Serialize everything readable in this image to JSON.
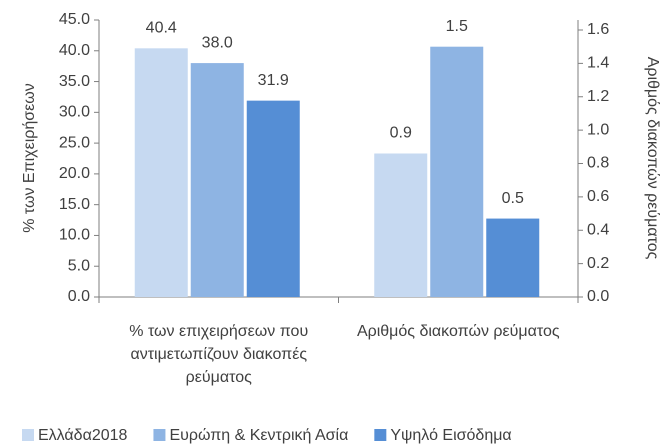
{
  "chart_data": {
    "type": "bar",
    "categories": [
      "% των επιχειρήσεων που αντιμετωπίζουν διακοπές ρεύματος",
      "Αριθμός διακοπών ρεύματος"
    ],
    "category_axes": [
      "y",
      "y2"
    ],
    "series": [
      {
        "name": "Ελλάδα2018",
        "color": "#c6d9f1",
        "values": [
          40.4,
          0.86
        ],
        "value_labels": [
          "40.4",
          "0.9"
        ]
      },
      {
        "name": "Ευρώπη & Κεντρική Ασία",
        "color": "#8eb4e3",
        "values": [
          38,
          1.5
        ],
        "value_labels": [
          "38.0",
          "1.5"
        ]
      },
      {
        "name": "Υψηλό Εισόδημα",
        "color": "#558ed5",
        "values": [
          31.9,
          0.47
        ],
        "value_labels": [
          "31.9",
          "0.5"
        ]
      }
    ],
    "ylabel": "% των Επιχειρήσεων",
    "y2label": "Αριθμός διακοπών ρεύματος",
    "ylim": [
      0,
      45
    ],
    "yticks": [
      {
        "value": 0,
        "label": "0.0"
      },
      {
        "value": 5,
        "label": "5.0"
      },
      {
        "value": 10,
        "label": "10.0"
      },
      {
        "value": 15,
        "label": "15.0"
      },
      {
        "value": 20,
        "label": "20.0"
      },
      {
        "value": 25,
        "label": "25.0"
      },
      {
        "value": 30,
        "label": "30.0"
      },
      {
        "value": 35,
        "label": "35.0"
      },
      {
        "value": 40,
        "label": "40.0"
      },
      {
        "value": 45,
        "label": "45.0"
      }
    ],
    "y2lim": [
      0,
      1.66
    ],
    "y2ticks": [
      {
        "value": 0,
        "label": "0.0"
      },
      0.2,
      0.4,
      0.6,
      0.8,
      {
        "value": 1,
        "label": "1.0"
      },
      1.2,
      1.4,
      1.6
    ],
    "legend": "bottom"
  }
}
